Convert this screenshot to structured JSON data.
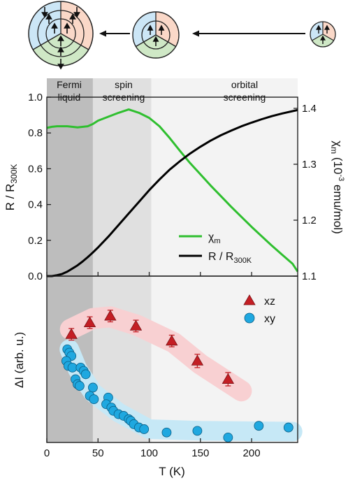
{
  "colors": {
    "spin_up_region": "#cce6f6",
    "spin_down_region": "#fad8c8",
    "green_region": "#cfe8c6",
    "fermi_band": "#bdbdbd",
    "spin_band": "#e0e0e0",
    "orbital_band": "#f3f3f3",
    "chi_line": "#2fbf2f",
    "r_line": "#000000",
    "xz_marker": "#c41e24",
    "xz_band": "#f8d0d2",
    "xy_marker": "#1fa8e0",
    "xy_band": "#c6e8f6"
  },
  "schematic": {
    "arrow_icons": [
      "arrow-left-icon",
      "arrow-left-icon"
    ]
  },
  "regions": [
    {
      "key": "fermi",
      "label_lines": [
        "Fermi",
        "liquid"
      ],
      "x_start": 0,
      "x_end": 45
    },
    {
      "key": "spin",
      "label_lines": [
        "spin",
        "screening"
      ],
      "x_start": 45,
      "x_end": 102
    },
    {
      "key": "orbital",
      "label_lines": [
        "orbital",
        "screening"
      ],
      "x_start": 102,
      "x_end": 245
    }
  ],
  "chart_data": [
    {
      "type": "line",
      "panel": "upper",
      "xlim": [
        0,
        245
      ],
      "ylabel": "R / R",
      "ylabel_sub": "300K",
      "ylim": [
        0,
        1.0
      ],
      "yticks": [
        "0.0",
        "0.2",
        "0.4",
        "0.6",
        "0.8",
        "1.0"
      ],
      "y2label": "χ",
      "y2label_sub": "m",
      "y2label_rest": "(10",
      "y2label_sup": "-3",
      "y2label_end": " emu/mol)",
      "y2lim": [
        1.1,
        1.42
      ],
      "y2ticks": [
        "1.1",
        "1.2",
        "1.3",
        "1.4"
      ],
      "series": [
        {
          "name": "χ",
          "name_sub": "m",
          "axis": "right",
          "x": [
            0,
            5,
            10,
            20,
            30,
            40,
            45,
            50,
            60,
            70,
            80,
            90,
            100,
            110,
            120,
            130,
            140,
            150,
            160,
            170,
            180,
            190,
            200,
            210,
            220,
            230,
            240,
            245
          ],
          "y": [
            1.365,
            1.367,
            1.368,
            1.368,
            1.366,
            1.368,
            1.372,
            1.378,
            1.385,
            1.392,
            1.398,
            1.392,
            1.383,
            1.368,
            1.347,
            1.324,
            1.302,
            1.282,
            1.262,
            1.243,
            1.224,
            1.206,
            1.188,
            1.171,
            1.154,
            1.138,
            1.122,
            1.108
          ]
        },
        {
          "name": "R / R",
          "name_sub": "300K",
          "axis": "left",
          "x": [
            0,
            5,
            10,
            15,
            20,
            25,
            30,
            35,
            40,
            45,
            50,
            60,
            70,
            80,
            90,
            100,
            110,
            120,
            130,
            140,
            150,
            160,
            170,
            180,
            190,
            200,
            210,
            220,
            230,
            240,
            245
          ],
          "y": [
            0.0,
            0.0,
            0.005,
            0.012,
            0.025,
            0.042,
            0.06,
            0.082,
            0.106,
            0.132,
            0.16,
            0.22,
            0.285,
            0.35,
            0.415,
            0.48,
            0.54,
            0.595,
            0.642,
            0.685,
            0.723,
            0.757,
            0.787,
            0.813,
            0.837,
            0.858,
            0.877,
            0.894,
            0.909,
            0.922,
            0.928
          ]
        }
      ]
    },
    {
      "type": "scatter",
      "panel": "lower",
      "xlim": [
        0,
        245
      ],
      "xticks": [
        "0",
        "50",
        "100",
        "150",
        "200"
      ],
      "xlabel": "T (K)",
      "ylabel": "ΔI (arb. u.)",
      "ylim": [
        0,
        10
      ],
      "series": [
        {
          "name": "xz",
          "marker": "triangle",
          "x": [
            24,
            42,
            62,
            87,
            122,
            147,
            177
          ],
          "y": [
            6.5,
            7.2,
            7.6,
            7.0,
            6.1,
            4.9,
            3.8
          ],
          "err": [
            0.35,
            0.35,
            0.35,
            0.35,
            0.35,
            0.4,
            0.4
          ]
        },
        {
          "name": "xy",
          "marker": "circle",
          "x": [
            20,
            22,
            24,
            19,
            21,
            25,
            33,
            36,
            38,
            28,
            30,
            32,
            45,
            42,
            46,
            60,
            58,
            63,
            65,
            70,
            75,
            80,
            82,
            85,
            90,
            95,
            117,
            147,
            177,
            207,
            236
          ],
          "y": [
            5.6,
            5.4,
            5.2,
            4.9,
            4.6,
            4.5,
            4.5,
            4.3,
            4.1,
            3.8,
            3.5,
            3.4,
            3.3,
            2.8,
            2.6,
            2.7,
            2.3,
            2.1,
            1.9,
            1.7,
            1.6,
            1.4,
            1.3,
            1.1,
            0.9,
            0.8,
            0.6,
            0.7,
            0.3,
            1.0,
            0.9
          ]
        }
      ]
    }
  ]
}
